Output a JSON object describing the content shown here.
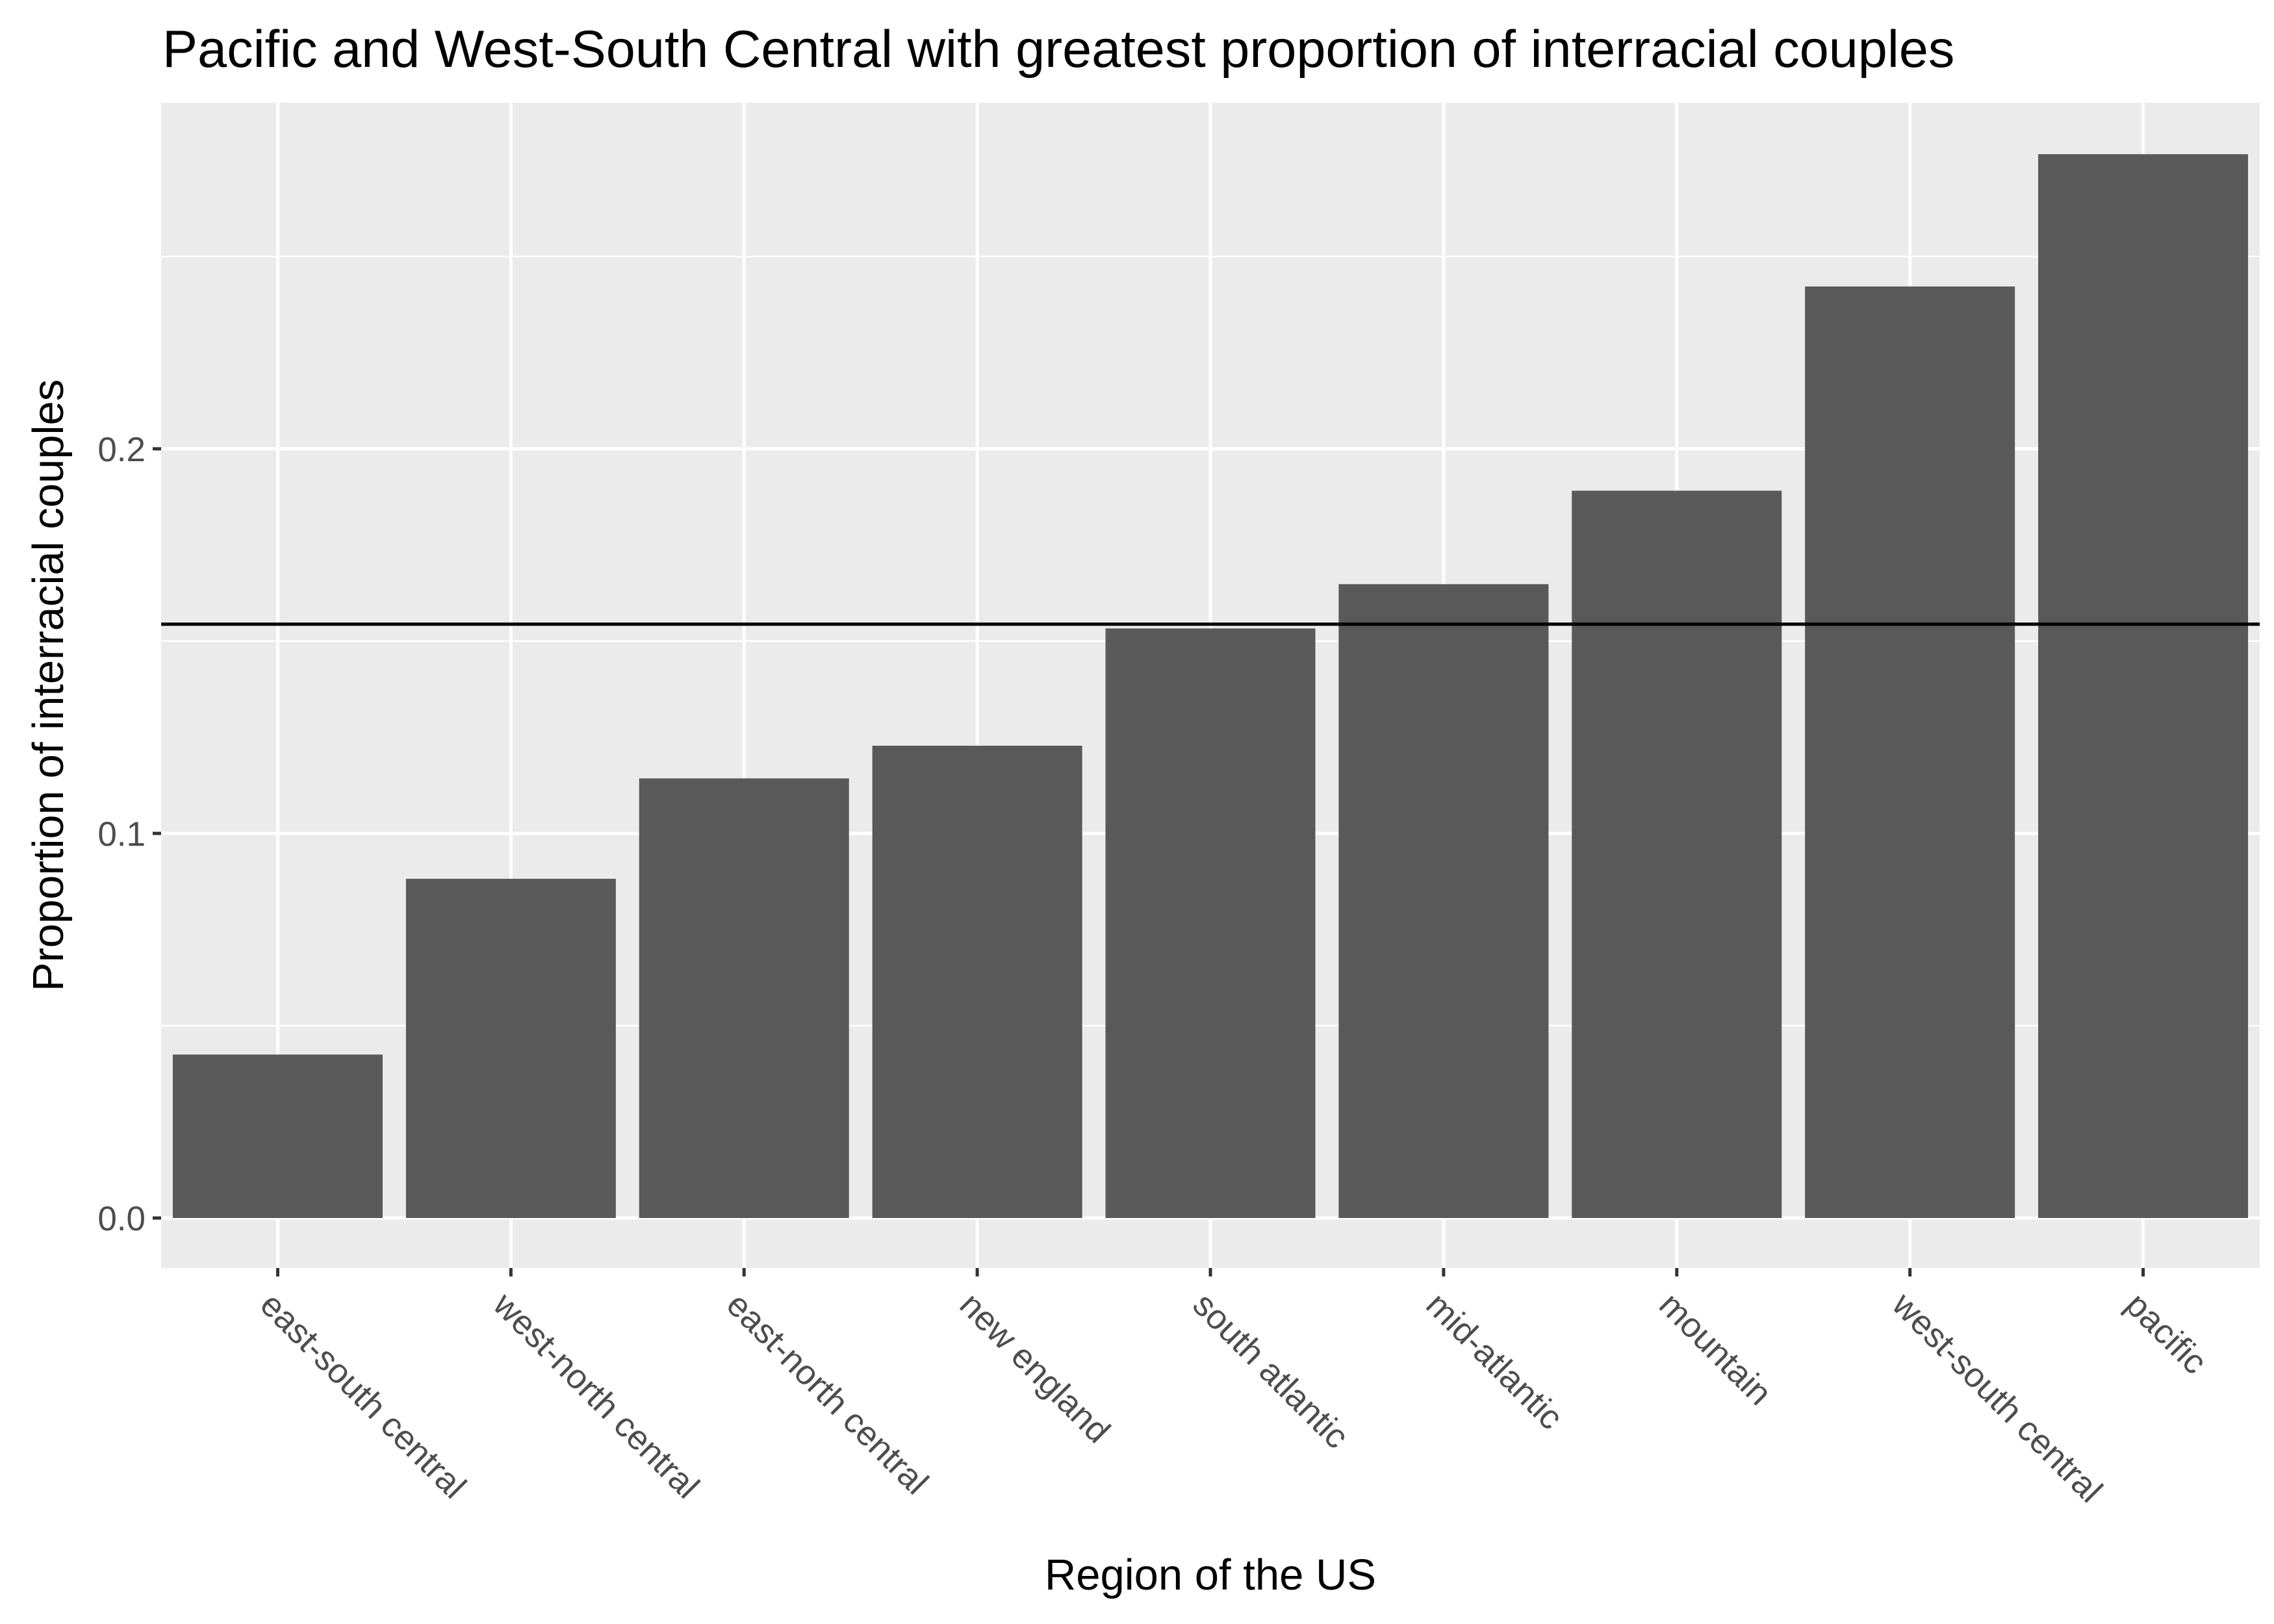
{
  "chart_data": {
    "type": "bar",
    "title": "Pacific and West-South Central with greatest proportion of interracial couples",
    "xlabel": "Region of the US",
    "ylabel": "Proportion of interracial couples",
    "categories": [
      "east-south central",
      "west-north central",
      "east-north central",
      "new england",
      "south atlantic",
      "mid-atlantic",
      "mountain",
      "west-south central",
      "pacific"
    ],
    "values": [
      0.0425,
      0.0882,
      0.1143,
      0.1228,
      0.1533,
      0.1648,
      0.1891,
      0.2422,
      0.2766
    ],
    "reference_line": 0.1544,
    "ylim": [
      -0.013,
      0.29
    ],
    "y_ticks": [
      0.0,
      0.1,
      0.2
    ],
    "y_tick_labels": [
      "0.0",
      "0.1",
      "0.2"
    ],
    "grid": true,
    "colors": {
      "panel_background": "#ebebeb",
      "grid_line": "#ffffff",
      "bar_fill": "#595959",
      "reference_line": "#000000",
      "tick_mark": "#333333"
    }
  }
}
